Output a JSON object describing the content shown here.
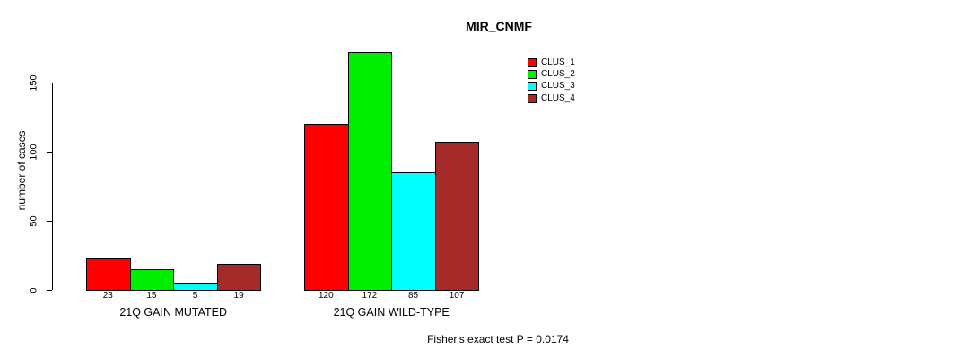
{
  "title": "MIR_CNMF",
  "y_axis": {
    "label": "number of cases",
    "ticks": [
      0,
      50,
      100,
      150
    ]
  },
  "footer": "Fisher's exact test P = 0.0174",
  "chart_data": {
    "type": "bar",
    "title": "MIR_CNMF",
    "ylabel": "number of cases",
    "xlabel": "",
    "categories": [
      "21Q GAIN MUTATED",
      "21Q GAIN WILD-TYPE"
    ],
    "series": [
      {
        "name": "CLUS_1",
        "color": "#FF0000",
        "values": [
          23,
          120
        ]
      },
      {
        "name": "CLUS_2",
        "color": "#00EE00",
        "values": [
          15,
          172
        ]
      },
      {
        "name": "CLUS_3",
        "color": "#00FFFF",
        "values": [
          5,
          85
        ]
      },
      {
        "name": "CLUS_4",
        "color": "#A52A2A",
        "values": [
          19,
          107
        ]
      }
    ],
    "yticks": [
      0,
      50,
      100,
      150
    ],
    "ylim": [
      0,
      175
    ],
    "bar_value_labels": [
      [
        23,
        15,
        5,
        19
      ],
      [
        120,
        172,
        85,
        107
      ]
    ],
    "legend_entries": [
      "CLUS_1",
      "CLUS_2",
      "CLUS_3",
      "CLUS_4"
    ],
    "legend_position": "top-right",
    "grid": false,
    "annotation": "Fisher's exact test P = 0.0174"
  }
}
